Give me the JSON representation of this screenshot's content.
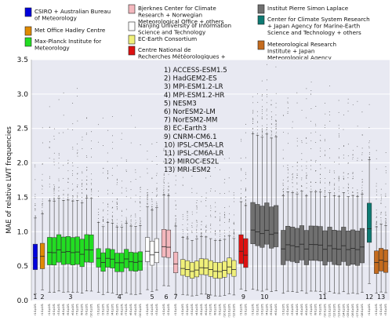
{
  "chart_data": {
    "type": "boxplot",
    "ylabel": "MAE of relative LWT frequencies",
    "ylim": [
      0.0,
      3.5
    ],
    "yticks": [
      "0.0",
      "0.5",
      "1.0",
      "1.5",
      "2.0",
      "2.5",
      "3.0",
      "3.5"
    ],
    "ytick_values": [
      0.0,
      0.5,
      1.0,
      1.5,
      2.0,
      2.5,
      3.0,
      3.5
    ],
    "grid": true,
    "legend": [
      {
        "label": "CSIRO + Australian Bureau of Meteorology",
        "color": "#0000dd"
      },
      {
        "label": "Met Office Hadley Centre",
        "color": "#e08a00"
      },
      {
        "label": "Max-Planck Institute for Meteorology",
        "color": "#22dd22"
      },
      {
        "label": "Bjerknes Center for Climate Research + Norwegian Meteorological Office + others",
        "color": "#f4b8be"
      },
      {
        "label": "Nanjing University of Information Science and Technology",
        "color": "#ffffff"
      },
      {
        "label": "EC-Earth Consortium",
        "color": "#f0f07a"
      },
      {
        "label": "Centre National de Recherches Météorologiques + others",
        "color": "#dd1111"
      },
      {
        "label": "Institut Pierre Simon Laplace",
        "color": "#707070"
      },
      {
        "label": "Center for Climate System Research + Japan Agency for Marine-Earth Science and Technology + others",
        "color": "#0d7a73"
      },
      {
        "label": "Meteorological Research Institute + Japan Meteorological Agency",
        "color": "#c46b1e"
      }
    ],
    "models": [
      "1) ACCESS-ESM1.5",
      "2) HadGEM2-ES",
      "3) MPI-ESM1.2-LR",
      "4) MPI-ESM1.2-HR",
      "5) NESM3",
      "6) NorESM2-LM",
      "7) NorESM2-MM",
      "8) EC-Earth3",
      "9) CNRM-CM6.1",
      "10) IPSL-CM5A-LR",
      "11) IPSL-CM6A-LR",
      "12) MIROC-ES2L",
      "13) MRI-ESM2"
    ],
    "groups": [
      {
        "num": "1",
        "color": "#0000dd",
        "n": 1,
        "q1": 0.45,
        "med": 0.62,
        "q3": 0.82,
        "wlo": 0.1,
        "whi": 1.2,
        "fmax": 2.9
      },
      {
        "num": "2",
        "color": "#e08a00",
        "n": 1,
        "q1": 0.45,
        "med": 0.63,
        "q3": 0.82,
        "wlo": 0.15,
        "whi": 1.25,
        "fmax": 2.9
      },
      {
        "num": "3",
        "color": "#22dd22",
        "n": 10,
        "q1": 0.52,
        "med": 0.7,
        "q3": 0.92,
        "wlo": 0.12,
        "whi": 1.45,
        "fmax": 3.4
      },
      {
        "num": "4",
        "color": "#22dd22",
        "n": 10,
        "q1": 0.45,
        "med": 0.58,
        "q3": 0.72,
        "wlo": 0.1,
        "whi": 1.1,
        "fmax": 2.9
      },
      {
        "num": "5",
        "color": "#ffffff",
        "n": 3,
        "q1": 0.55,
        "med": 0.7,
        "q3": 0.9,
        "wlo": 0.15,
        "whi": 1.35,
        "fmax": 2.6
      },
      {
        "num": "6",
        "color": "#f4b8be",
        "n": 2,
        "q1": 0.6,
        "med": 0.75,
        "q3": 1.0,
        "wlo": 0.2,
        "whi": 1.5,
        "fmax": 2.7
      },
      {
        "num": "7",
        "color": "#f4b8be",
        "n": 1,
        "q1": 0.42,
        "med": 0.55,
        "q3": 0.72,
        "wlo": 0.1,
        "whi": 1.1,
        "fmax": 2.5
      },
      {
        "num": "8",
        "color": "#f0f07a",
        "n": 12,
        "q1": 0.35,
        "med": 0.45,
        "q3": 0.58,
        "wlo": 0.08,
        "whi": 0.9,
        "fmax": 2.3
      },
      {
        "num": "9",
        "color": "#dd1111",
        "n": 2,
        "q1": 0.5,
        "med": 0.68,
        "q3": 0.92,
        "wlo": 0.15,
        "whi": 1.4,
        "fmax": 2.8
      },
      {
        "num": "10",
        "color": "#707070",
        "n": 6,
        "q1": 0.8,
        "med": 1.0,
        "q3": 1.4,
        "wlo": 0.15,
        "whi": 2.4,
        "fmax": 3.5
      },
      {
        "num": "11",
        "color": "#707070",
        "n": 18,
        "q1": 0.55,
        "med": 0.78,
        "q3": 1.05,
        "wlo": 0.12,
        "whi": 1.55,
        "fmax": 3.4
      },
      {
        "num": "12",
        "color": "#0d7a73",
        "n": 1,
        "q1": 0.85,
        "med": 1.05,
        "q3": 1.42,
        "wlo": 0.25,
        "whi": 2.05,
        "fmax": 3.0
      },
      {
        "num": "13",
        "color": "#c46b1e",
        "n": 3,
        "q1": 0.42,
        "med": 0.58,
        "q3": 0.75,
        "wlo": 0.12,
        "whi": 1.1,
        "fmax": 2.4
      }
    ]
  }
}
